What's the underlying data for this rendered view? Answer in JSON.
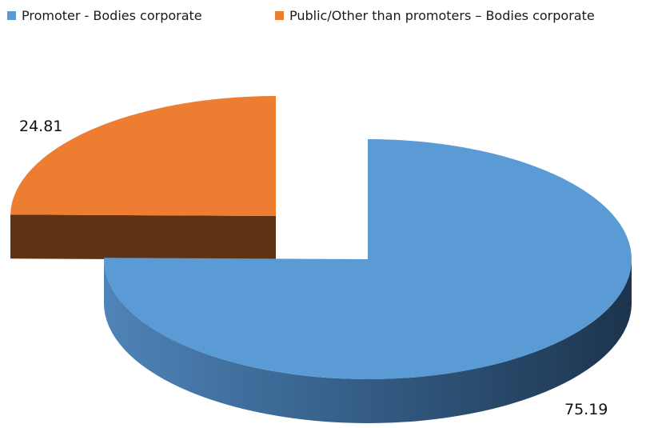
{
  "chart_data": {
    "type": "pie",
    "title": "",
    "series": [
      {
        "name": "Promoter - Bodies corporate",
        "value": 75.19,
        "label": "75.19",
        "color": "#5b9bd5"
      },
      {
        "name": "Public/Other than promoters – Bodies corporate",
        "value": 24.81,
        "label": "24.81",
        "color": "#ed7d31"
      }
    ],
    "legend_position": "top",
    "style": "3d-exploded",
    "total": 100
  }
}
